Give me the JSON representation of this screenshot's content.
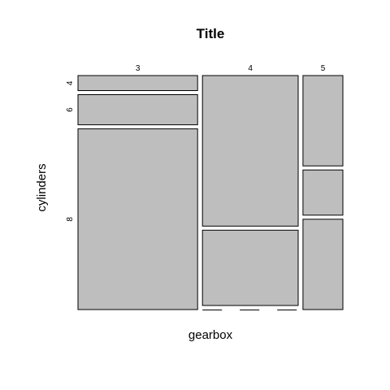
{
  "chart_data": {
    "type": "mosaic",
    "title": "Title",
    "xlabel": "gearbox",
    "ylabel": "cylinders",
    "x_categories": [
      "3",
      "4",
      "5"
    ],
    "y_categories": [
      "4",
      "6",
      "8"
    ],
    "counts": [
      [
        1,
        2,
        12
      ],
      [
        8,
        4,
        0
      ],
      [
        2,
        1,
        2
      ]
    ],
    "fill_color": "#bebebe",
    "stroke_color": "#000000"
  }
}
